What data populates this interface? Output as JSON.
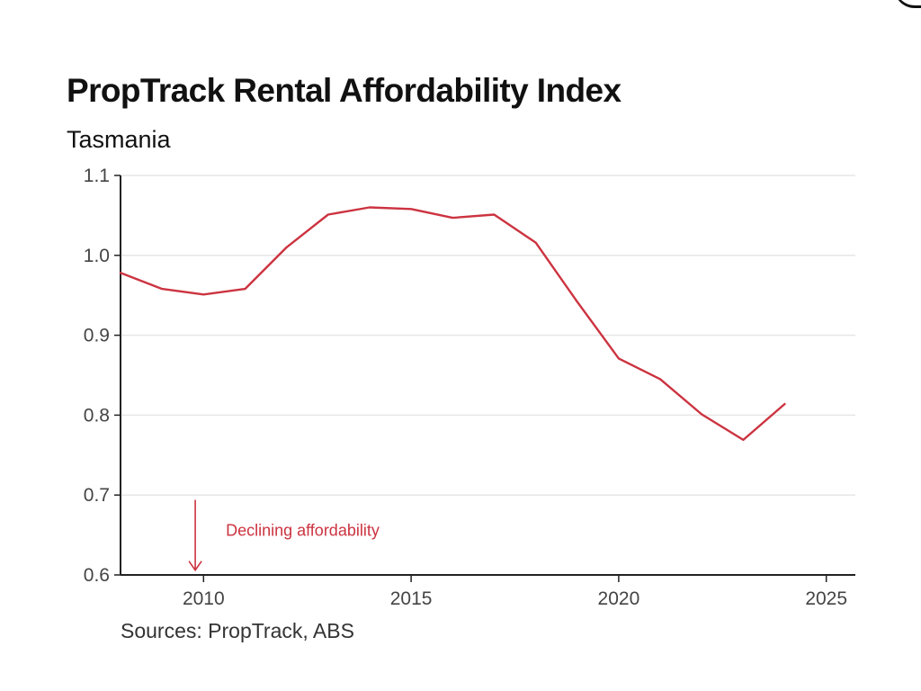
{
  "colors": {
    "line": "#cc3340",
    "annotation": "#cc3340",
    "grid": "#e6e6e6",
    "axis": "#222222"
  },
  "chart_data": {
    "type": "line",
    "title": "PropTrack Rental Affordability Index",
    "subtitle": "Tasmania",
    "source": "Sources: PropTrack, ABS",
    "xlabel": "",
    "ylabel": "",
    "xlim": [
      2008,
      2025.7
    ],
    "ylim": [
      0.6,
      1.1
    ],
    "grid": true,
    "x_ticks": [
      2010,
      2015,
      2020,
      2025
    ],
    "y_ticks": [
      0.6,
      0.7,
      0.8,
      0.9,
      1.0,
      1.1
    ],
    "x_tick_labels": [
      "2010",
      "2015",
      "2020",
      "2025"
    ],
    "y_tick_labels": [
      "0.6",
      "0.7",
      "0.8",
      "0.9",
      "1.0",
      "1.1"
    ],
    "series": [
      {
        "name": "Tasmania",
        "x": [
          2008,
          2009,
          2010,
          2011,
          2012,
          2013,
          2014,
          2015,
          2016,
          2017,
          2018,
          2019,
          2020,
          2021,
          2022,
          2023,
          2024
        ],
        "values": [
          0.978,
          0.958,
          0.951,
          0.958,
          1.01,
          1.051,
          1.06,
          1.058,
          1.047,
          1.051,
          1.016,
          0.942,
          0.871,
          0.845,
          0.801,
          0.769,
          0.814
        ]
      }
    ],
    "annotation": {
      "text": "Declining affordability",
      "x": 2009.8,
      "y_start": 0.694,
      "y_end": 0.606
    }
  }
}
